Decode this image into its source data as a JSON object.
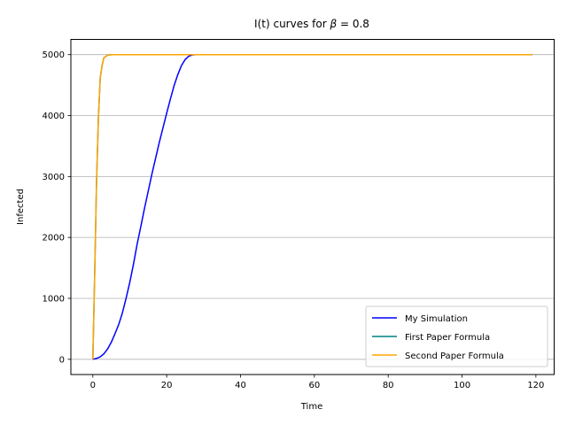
{
  "chart_data": {
    "type": "line",
    "title_prefix": "I(t) curves for ",
    "title_symbol": "β",
    "title_suffix": " = 0.8",
    "xlabel": "Time",
    "ylabel": "Infected",
    "xlim": [
      -5.95,
      124.95
    ],
    "ylim": [
      -250,
      5250
    ],
    "xticks": [
      0,
      20,
      40,
      60,
      80,
      100,
      120
    ],
    "yticks": [
      0,
      1000,
      2000,
      3000,
      4000,
      5000
    ],
    "grid": "y-major",
    "legend_position": "lower right",
    "series": [
      {
        "name": "My Simulation",
        "color": "#0000ff",
        "x": [
          0,
          1,
          2,
          3,
          4,
          5,
          6,
          7,
          8,
          9,
          10,
          11,
          12,
          13,
          14,
          15,
          16,
          17,
          18,
          19,
          20,
          21,
          22,
          23,
          24,
          25,
          26,
          27,
          28,
          30,
          40,
          60,
          80,
          100,
          119
        ],
        "y": [
          0,
          15,
          40,
          90,
          170,
          280,
          420,
          570,
          760,
          1000,
          1260,
          1560,
          1890,
          2180,
          2480,
          2760,
          3040,
          3300,
          3560,
          3800,
          4040,
          4270,
          4490,
          4670,
          4820,
          4920,
          4975,
          4995,
          5000,
          5000,
          5000,
          5000,
          5000,
          5000,
          5000
        ]
      },
      {
        "name": "First Paper Formula",
        "color": "#008080",
        "x": [
          0,
          0.5,
          1,
          1.5,
          2,
          2.5,
          3,
          4,
          5,
          6,
          10,
          20,
          40,
          60,
          80,
          100,
          119
        ],
        "y": [
          0,
          1400,
          2900,
          3950,
          4620,
          4820,
          4950,
          4990,
          4999,
          5000,
          5000,
          5000,
          5000,
          5000,
          5000,
          5000,
          5000
        ]
      },
      {
        "name": "Second Paper Formula",
        "color": "#ffa500",
        "x": [
          0,
          0.5,
          1,
          1.5,
          2,
          2.5,
          3,
          4,
          5,
          6,
          10,
          20,
          40,
          60,
          80,
          100,
          119
        ],
        "y": [
          0,
          1400,
          2900,
          3950,
          4620,
          4820,
          4950,
          4990,
          4999,
          5000,
          5000,
          5000,
          5000,
          5000,
          5000,
          5000,
          5000
        ]
      }
    ]
  }
}
